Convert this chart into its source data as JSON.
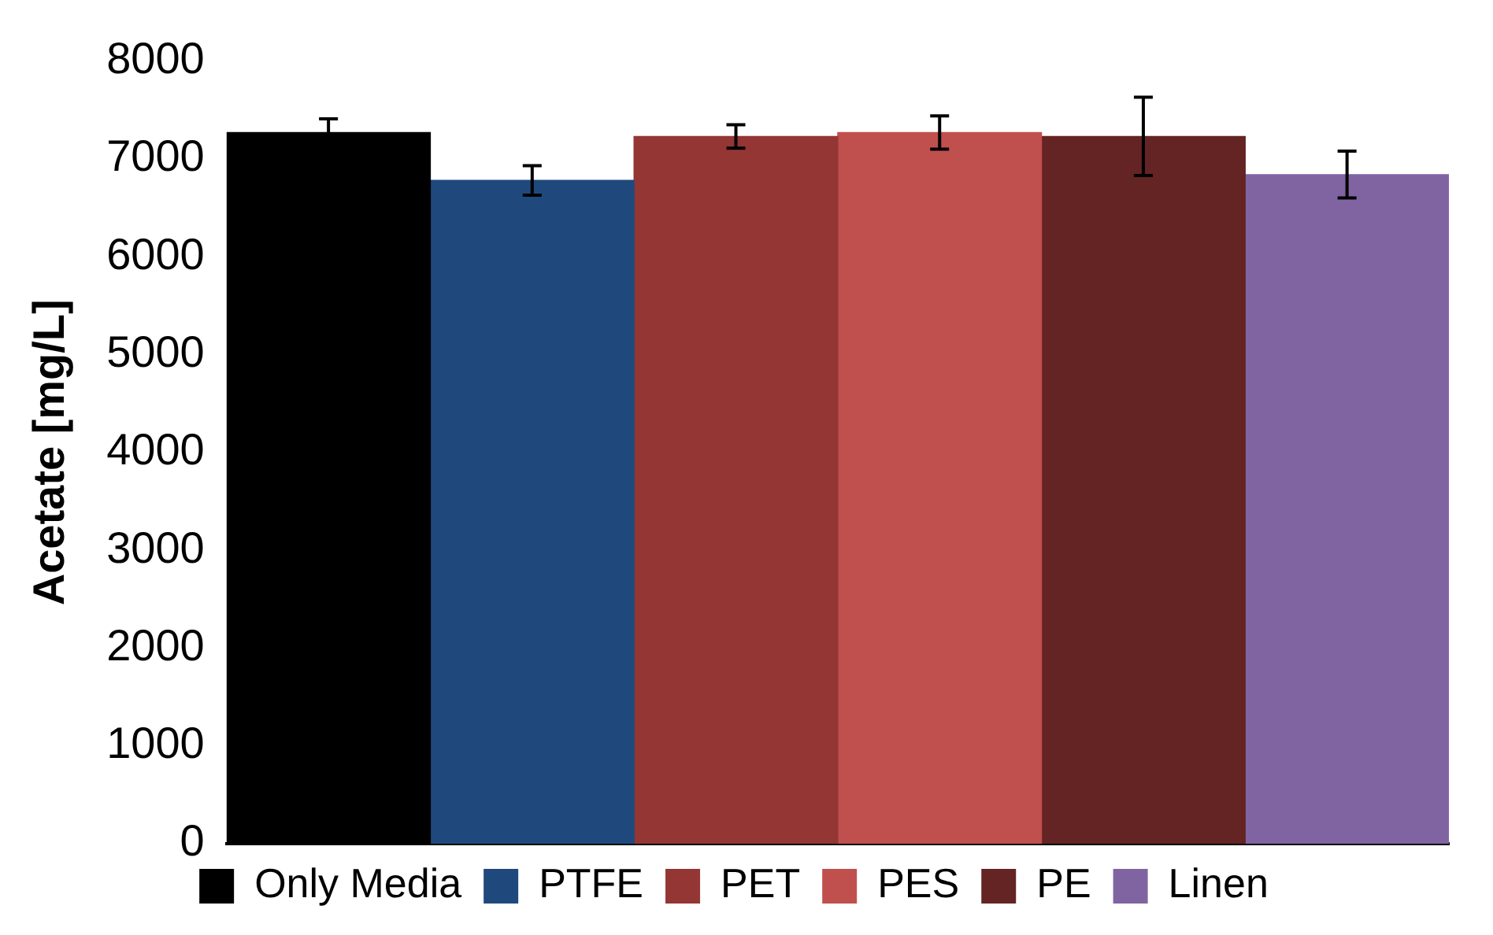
{
  "chart_data": {
    "type": "bar",
    "ylabel": "Acetate [mg/L]",
    "categories": [
      null
    ],
    "series": [
      {
        "name": "Only Media",
        "color": "#000000",
        "values": [
          7270
        ],
        "errors": [
          140
        ]
      },
      {
        "name": "PTFE",
        "color": "#1f497d",
        "values": [
          6780
        ],
        "errors": [
          150
        ]
      },
      {
        "name": "PET",
        "color": "#943634",
        "values": [
          7230
        ],
        "errors": [
          120
        ]
      },
      {
        "name": "PES",
        "color": "#c0504d",
        "values": [
          7270
        ],
        "errors": [
          170
        ]
      },
      {
        "name": "PE",
        "color": "#632423",
        "values": [
          7230
        ],
        "errors": [
          400
        ]
      },
      {
        "name": "Linen",
        "color": "#8064a2",
        "values": [
          6840
        ],
        "errors": [
          240
        ]
      }
    ],
    "ylim": [
      0,
      8000
    ],
    "yticks": [
      0,
      1000,
      2000,
      3000,
      4000,
      5000,
      6000,
      7000,
      8000
    ],
    "grid": false,
    "legend": "bottom"
  }
}
